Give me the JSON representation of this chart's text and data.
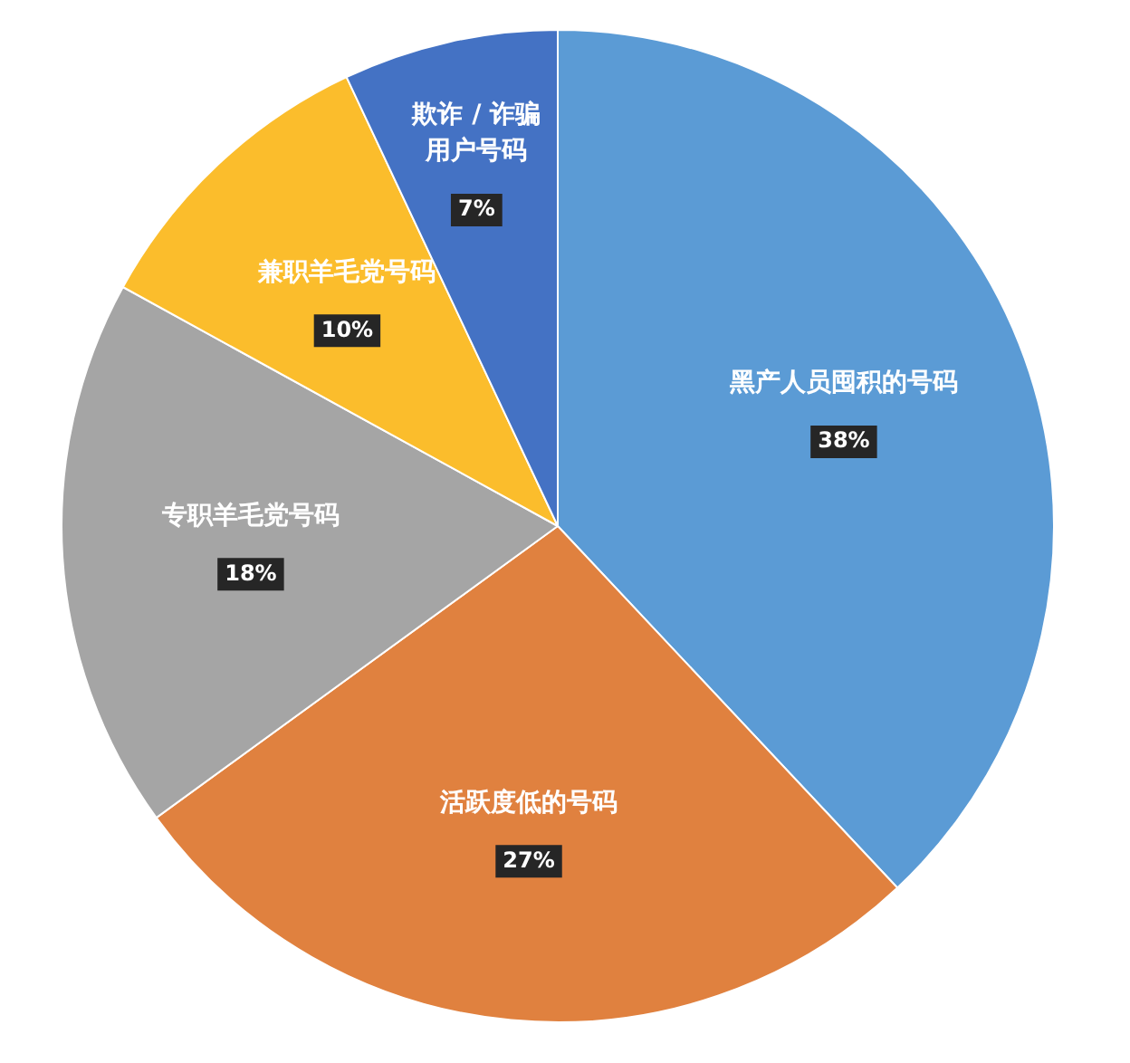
{
  "chart_data": {
    "type": "pie",
    "categories": [
      "黑产人员囤积的号码",
      "活跃度低的号码",
      "专职羊毛党号码",
      "兼职羊毛党号码",
      "欺诈 / 诈骗用户号码"
    ],
    "values": [
      38,
      27,
      18,
      10,
      7
    ],
    "colors": [
      "#5b9bd5",
      "#e0813f",
      "#a5a5a5",
      "#fbbd2c",
      "#4472c4"
    ],
    "value_labels": [
      "38%",
      "27%",
      "18%",
      "10%",
      "7%"
    ],
    "legend": false
  }
}
